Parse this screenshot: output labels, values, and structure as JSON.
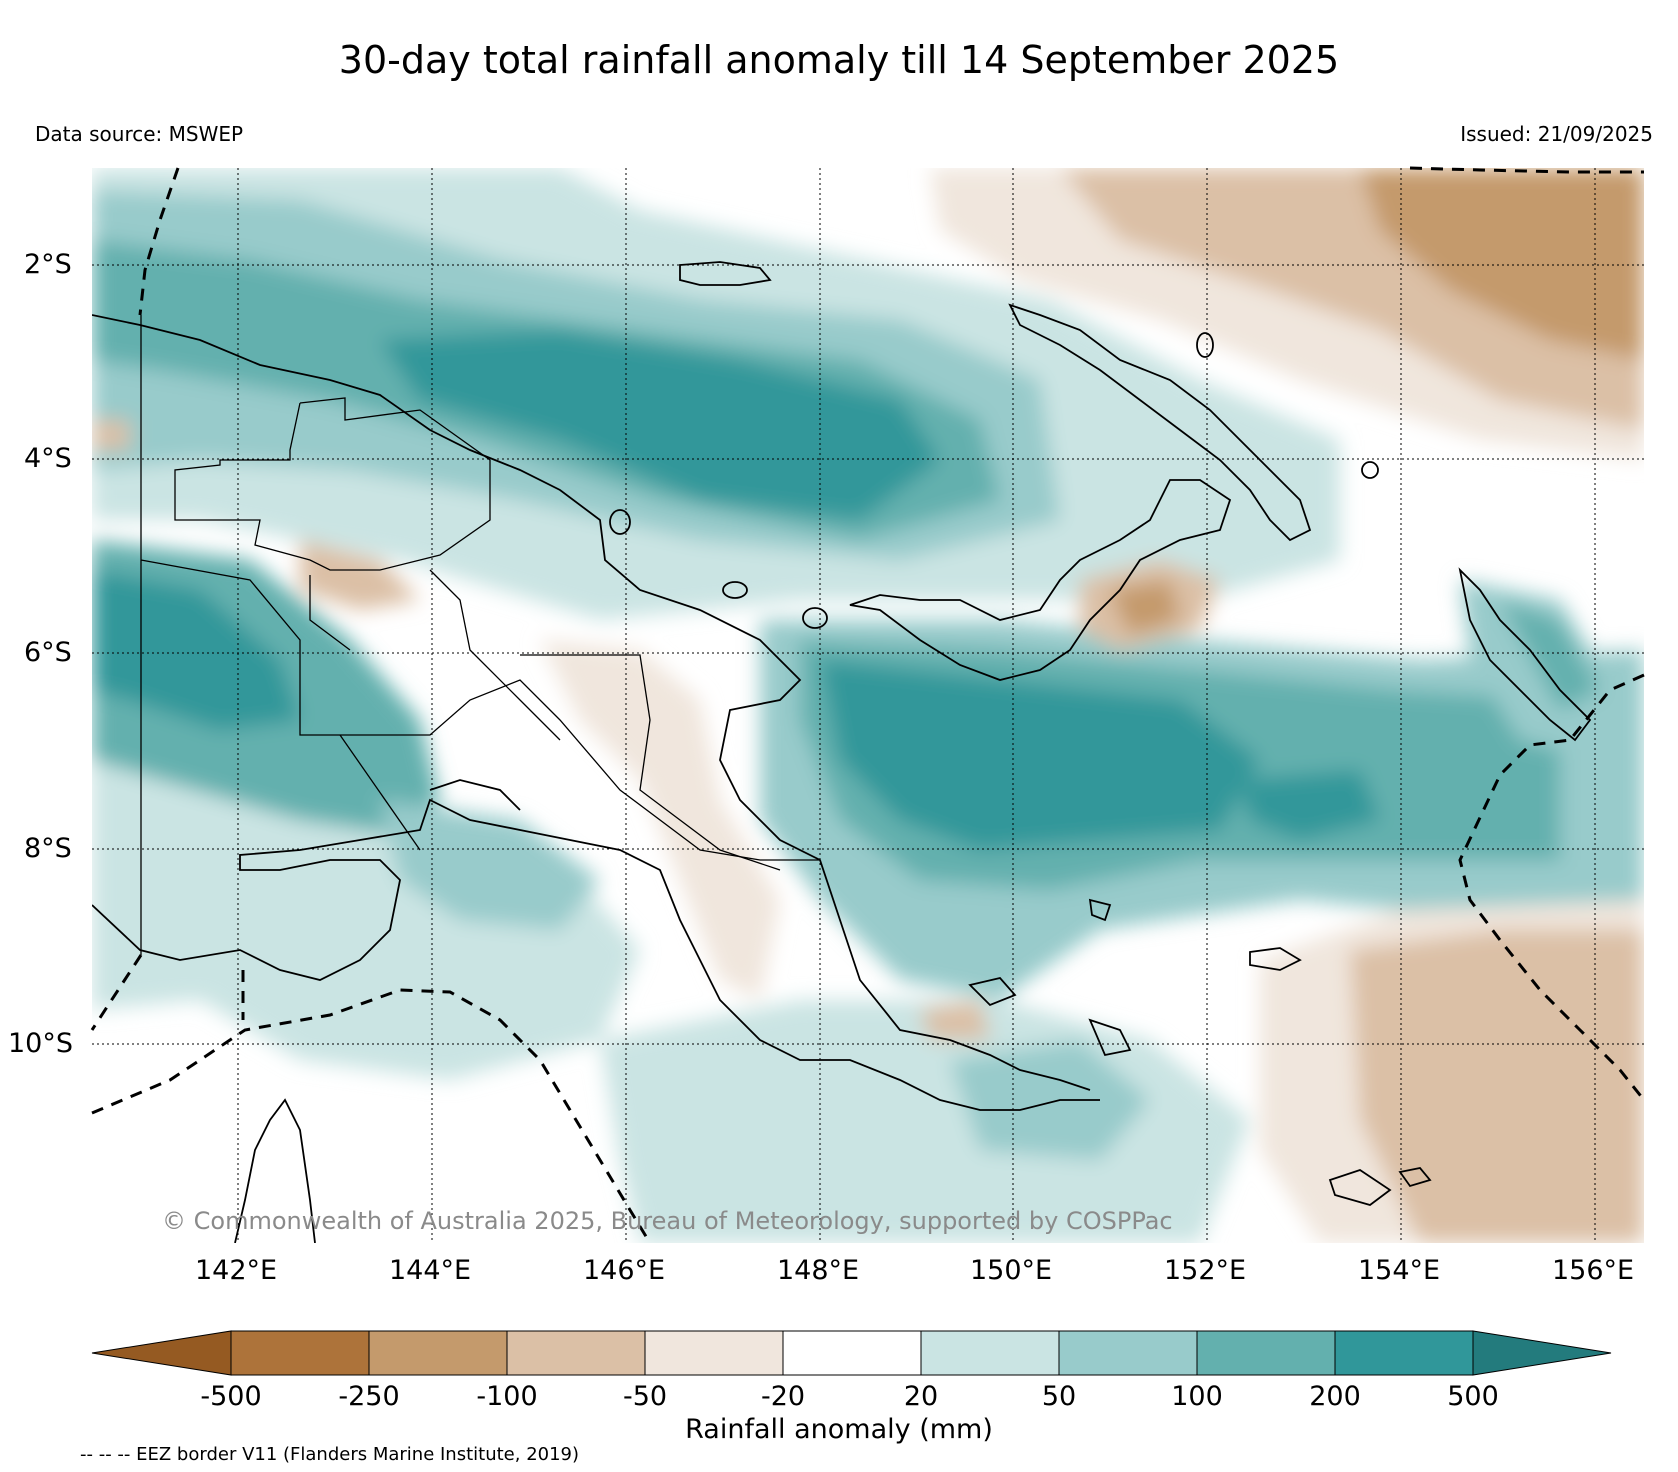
{
  "title": "30-day total rainfall anomaly till 14 September 2025",
  "data_source": "Data source: MSWEP",
  "issued": "Issued: 21/09/2025",
  "copyright": "© Commonwealth of Australia 2025, Bureau of Meteorology, supported by COSPPac",
  "map": {
    "region": "Papua New Guinea",
    "lon_range": [
      140.7,
      156.7
    ],
    "lat_range": [
      -12.2,
      -1.0
    ],
    "lat_ticks": [
      {
        "value": -2,
        "label": "2°S"
      },
      {
        "value": -4,
        "label": "4°S"
      },
      {
        "value": -6,
        "label": "6°S"
      },
      {
        "value": -8,
        "label": "8°S"
      },
      {
        "value": -10,
        "label": "10°S"
      }
    ],
    "lon_ticks": [
      {
        "value": 142,
        "label": "142°E"
      },
      {
        "value": 144,
        "label": "144°E"
      },
      {
        "value": 146,
        "label": "146°E"
      },
      {
        "value": 148,
        "label": "148°E"
      },
      {
        "value": 150,
        "label": "150°E"
      },
      {
        "value": 152,
        "label": "152°E"
      },
      {
        "value": 154,
        "label": "154°E"
      },
      {
        "value": 156,
        "label": "156°E"
      }
    ],
    "gridlines": true
  },
  "colorbar": {
    "label": "Rainfall anomaly (mm)",
    "tick_labels": [
      "-500",
      "-250",
      "-100",
      "-50",
      "-20",
      "20",
      "50",
      "100",
      "200",
      "500"
    ],
    "colors": [
      "#955a22",
      "#ad733a",
      "#c49a6c",
      "#dbc0a6",
      "#f0e6dd",
      "#ffffff",
      "#cae4e3",
      "#98cbcb",
      "#63b0ae",
      "#30979a",
      "#237b7d"
    ]
  },
  "eez_note": "-- -- -- EEZ border V11 (Flanders Marine Institute, 2019)"
}
